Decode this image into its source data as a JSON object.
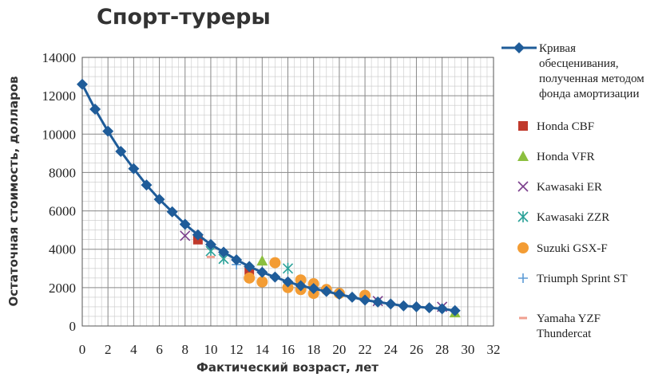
{
  "chart_data": {
    "type": "scatter",
    "title": "Спорт-туреры",
    "xlabel": "Фактический возраст, лет",
    "ylabel": "Остаточная стоимость, долларов",
    "xlim": [
      0,
      32
    ],
    "ylim": [
      0,
      14000
    ],
    "x_ticks": [
      "0",
      "2",
      "4",
      "6",
      "8",
      "10",
      "12",
      "14",
      "16",
      "18",
      "20",
      "22",
      "24",
      "26",
      "28",
      "30",
      "32"
    ],
    "y_ticks": [
      "0",
      "2000",
      "4000",
      "6000",
      "8000",
      "10000",
      "12000",
      "14000"
    ],
    "grid": true,
    "legend_position": "right",
    "colors": {
      "curve": "#1f5c99",
      "honda_cbf": "#c0392b",
      "honda_vfr": "#8cbf3f",
      "kawasaki_er": "#7b3f8c",
      "kawasaki_zzr": "#2aa198",
      "suzuki_gsxf": "#f39c34",
      "triumph": "#5b9bd5",
      "yamaha": "#f0a090"
    },
    "series": [
      {
        "name": "Кривая обесценивания, полученная методом фонда амортизации",
        "legend_lines": [
          "Кривая",
          "обесценивания,",
          "полученная методом",
          "фонда амортизации"
        ],
        "marker": "diamond-line",
        "x": [
          0,
          1,
          2,
          3,
          4,
          5,
          6,
          7,
          8,
          9,
          10,
          11,
          12,
          13,
          14,
          15,
          16,
          17,
          18,
          19,
          20,
          21,
          22,
          23,
          24,
          25,
          26,
          27,
          28,
          29
        ],
        "y": [
          12600,
          11300,
          10150,
          9100,
          8200,
          7350,
          6600,
          5950,
          5300,
          4750,
          4250,
          3850,
          3450,
          3100,
          2800,
          2550,
          2300,
          2100,
          1950,
          1800,
          1650,
          1500,
          1350,
          1250,
          1150,
          1050,
          1000,
          950,
          900,
          800
        ]
      },
      {
        "name": "Honda CBF",
        "marker": "square",
        "x": [
          9,
          13
        ],
        "y": [
          4500,
          2900
        ]
      },
      {
        "name": "Honda VFR",
        "marker": "triangle",
        "x": [
          14,
          29
        ],
        "y": [
          3400,
          700
        ]
      },
      {
        "name": "Kawasaki ER",
        "marker": "x",
        "x": [
          8,
          23,
          28
        ],
        "y": [
          4700,
          1300,
          1000
        ]
      },
      {
        "name": "Kawasaki ZZR",
        "marker": "asterisk",
        "x": [
          10,
          11,
          16
        ],
        "y": [
          3900,
          3500,
          3000
        ]
      },
      {
        "name": "Suzuki GSX-F",
        "marker": "circle",
        "x": [
          13,
          14,
          15,
          16,
          17,
          17,
          18,
          18,
          19,
          20,
          22
        ],
        "y": [
          2500,
          2300,
          3300,
          2000,
          2400,
          1900,
          2200,
          1700,
          1900,
          1700,
          1600
        ]
      },
      {
        "name": "Triumph Sprint ST",
        "marker": "plus",
        "x": [
          12,
          19
        ],
        "y": [
          3200,
          1800
        ]
      },
      {
        "name": "Yamaha YZF Thundercat",
        "legend_lines": [
          "Yamaha YZF",
          "Thundercat"
        ],
        "marker": "dash",
        "x": [
          10,
          21
        ],
        "y": [
          3600,
          1500
        ]
      }
    ]
  }
}
